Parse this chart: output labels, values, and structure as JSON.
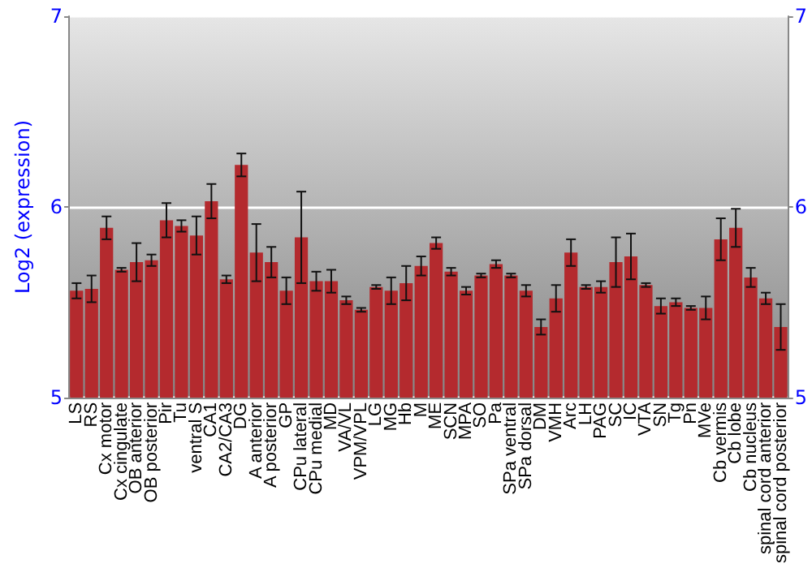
{
  "chart_data": {
    "type": "bar",
    "ylabel": "Log2 (expression)",
    "categories": [
      "LS",
      "RS",
      "Cx motor",
      "Cx cingulate",
      "OB anterior",
      "OB posterior",
      "Pir",
      "Tu",
      "ventral S",
      "CA1",
      "CA2/CA3",
      "DG",
      "A anterior",
      "A posterior",
      "GP",
      "CPu lateral",
      "CPu medial",
      "MD",
      "VA/VL",
      "VPM/VPL",
      "LG",
      "MG",
      "Hb",
      "M",
      "ME",
      "SCN",
      "MPA",
      "SO",
      "Pa",
      "SPa ventral",
      "SPa dorsal",
      "DM",
      "VMH",
      "Arc",
      "LH",
      "PAG",
      "SC",
      "IC",
      "VTA",
      "SN",
      "Tg",
      "Pn",
      "MVe",
      "Cb vermis",
      "Cb lobe",
      "Cb nucleus",
      "spinal cord anterior",
      "spinal cord posterior"
    ],
    "values": [
      5.56,
      5.57,
      5.89,
      5.67,
      5.71,
      5.72,
      5.93,
      5.9,
      5.85,
      6.03,
      5.62,
      6.22,
      5.76,
      5.71,
      5.56,
      5.84,
      5.61,
      5.61,
      5.51,
      5.46,
      5.58,
      5.56,
      5.6,
      5.69,
      5.81,
      5.66,
      5.56,
      5.64,
      5.7,
      5.64,
      5.56,
      5.37,
      5.52,
      5.76,
      5.58,
      5.58,
      5.71,
      5.74,
      5.59,
      5.48,
      5.5,
      5.47,
      5.47,
      5.83,
      5.89,
      5.63,
      5.52,
      5.37
    ],
    "errors": [
      0.04,
      0.07,
      0.06,
      0.01,
      0.1,
      0.03,
      0.09,
      0.03,
      0.1,
      0.09,
      0.02,
      0.06,
      0.15,
      0.08,
      0.07,
      0.24,
      0.05,
      0.06,
      0.02,
      0.01,
      0.01,
      0.07,
      0.09,
      0.05,
      0.03,
      0.02,
      0.02,
      0.01,
      0.02,
      0.01,
      0.03,
      0.04,
      0.07,
      0.07,
      0.01,
      0.03,
      0.13,
      0.12,
      0.01,
      0.04,
      0.02,
      0.01,
      0.06,
      0.11,
      0.1,
      0.05,
      0.03,
      0.12
    ],
    "color": "#b42a2e",
    "ylim": [
      5,
      7
    ],
    "yticks": [
      5,
      6,
      7
    ],
    "y2lim": [
      5,
      7
    ],
    "y2ticks": [
      5,
      6,
      7
    ],
    "grid": "y"
  }
}
